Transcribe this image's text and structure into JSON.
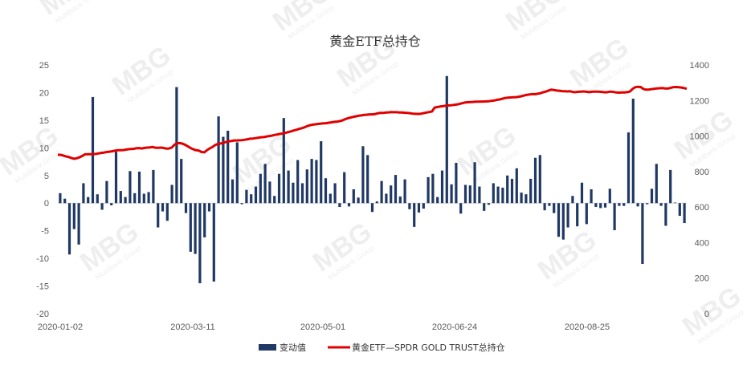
{
  "chart_data": {
    "type": "bar+line",
    "title": "黄金ETF总持仓",
    "x_tick_labels": [
      "2020-01-02",
      "2020-03-11",
      "2020-05-01",
      "2020-06-24",
      "2020-08-25"
    ],
    "left_axis": {
      "ylim": [
        -20,
        25
      ],
      "ticks": [
        25,
        20,
        15,
        10,
        5,
        0,
        -5,
        -10,
        -15,
        -20
      ]
    },
    "right_axis": {
      "ylim": [
        0,
        1400
      ],
      "ticks": [
        1400,
        1200,
        1000,
        800,
        600,
        400,
        200,
        0
      ]
    },
    "grid": false,
    "legend_position": "bottom",
    "series": [
      {
        "name": "变动值",
        "type": "bar",
        "axis": "left",
        "color": "#1f3864",
        "values": [
          1.8,
          0.8,
          -9.3,
          -4.7,
          -7.5,
          3.6,
          1.1,
          19.2,
          1.6,
          -1.2,
          4.0,
          -0.4,
          9.3,
          2.2,
          1.1,
          5.8,
          1.8,
          5.7,
          1.7,
          2.0,
          6.0,
          -4.4,
          -1.5,
          -3.2,
          3.3,
          21.0,
          8.0,
          -1.8,
          -8.8,
          -9.2,
          -14.5,
          -6.2,
          -1.5,
          -14.2,
          15.7,
          12.0,
          13.1,
          4.3,
          11.0,
          -0.2,
          2.4,
          1.6,
          3.0,
          5.3,
          7.1,
          3.9,
          1.3,
          5.3,
          15.4,
          5.9,
          3.7,
          7.8,
          3.6,
          6.1,
          8.0,
          7.8,
          11.2,
          4.5,
          1.7,
          3.6,
          -0.7,
          5.6,
          -0.6,
          2.5,
          1.0,
          10.3,
          8.7,
          -1.6,
          0.3,
          4.0,
          1.7,
          3.2,
          5.1,
          1.2,
          4.3,
          -1.1,
          -4.3,
          -1.7,
          -1.0,
          4.7,
          5.3,
          1.1,
          5.9,
          23.0,
          3.4,
          7.3,
          -1.9,
          3.3,
          3.2,
          7.4,
          3.0,
          -1.4,
          -0.3,
          3.6,
          3.0,
          2.8,
          5.0,
          4.4,
          6.3,
          1.9,
          1.6,
          4.4,
          8.2,
          8.7,
          -1.3,
          -0.5,
          -1.8,
          -6.1,
          -6.6,
          -4.4,
          1.3,
          -4.2,
          3.7,
          -3.8,
          2.5,
          -0.7,
          -0.9,
          -0.8,
          2.6,
          -4.9,
          -0.5,
          -0.5,
          12.8,
          18.9,
          -0.6,
          -11.0,
          -0.2,
          2.6,
          7.1,
          -0.5,
          -4.1,
          6.0,
          0.1,
          -2.3,
          -3.6
        ]
      },
      {
        "name": "黄金ETF—SPDR GOLD TRUST总持仓",
        "type": "line",
        "axis": "right",
        "color": "#e00000",
        "values": [
          894,
          894,
          890,
          885,
          882,
          876,
          872,
          875,
          880,
          888,
          897,
          898,
          898,
          898,
          899,
          902,
          905,
          907,
          910,
          912,
          914,
          917,
          920,
          920,
          921,
          923,
          926,
          927,
          928,
          931,
          932,
          930,
          933,
          935,
          936,
          938,
          934,
          934,
          935,
          933,
          929,
          930,
          935,
          950,
          959,
          960,
          957,
          950,
          941,
          932,
          925,
          920,
          918,
          910,
          908,
          920,
          930,
          938,
          949,
          955,
          958,
          962,
          966,
          970,
          972,
          975,
          975,
          976,
          977,
          979,
          982,
          985,
          986,
          988,
          991,
          993,
          994,
          997,
          1000,
          1002,
          1006,
          1009,
          1012,
          1014,
          1018,
          1022,
          1026,
          1031,
          1035,
          1040,
          1044,
          1049,
          1056,
          1061,
          1064,
          1066,
          1068,
          1070,
          1071,
          1072,
          1075,
          1077,
          1080,
          1081,
          1084,
          1088,
          1095,
          1100,
          1104,
          1108,
          1111,
          1114,
          1116,
          1119,
          1120,
          1122,
          1122,
          1123,
          1128,
          1130,
          1130,
          1132,
          1133,
          1135,
          1134,
          1134,
          1132,
          1132,
          1131,
          1130,
          1128,
          1126,
          1125,
          1124,
          1126,
          1129,
          1132,
          1135,
          1138,
          1160,
          1163,
          1166,
          1168,
          1170,
          1172,
          1173,
          1175,
          1177,
          1180,
          1184,
          1188,
          1190,
          1191,
          1192,
          1193,
          1193,
          1194,
          1194,
          1195,
          1196,
          1198,
          1200,
          1204,
          1206,
          1210,
          1214,
          1216,
          1217,
          1218,
          1219,
          1221,
          1224,
          1228,
          1232,
          1234,
          1236,
          1235,
          1238,
          1241,
          1246,
          1250,
          1256,
          1261,
          1259,
          1256,
          1255,
          1253,
          1252,
          1251,
          1252,
          1248,
          1247,
          1249,
          1250,
          1251,
          1249,
          1247,
          1249,
          1250,
          1250,
          1249,
          1248,
          1246,
          1248,
          1250,
          1248,
          1245,
          1244,
          1245,
          1245,
          1247,
          1250,
          1265,
          1275,
          1277,
          1276,
          1265,
          1261,
          1262,
          1264,
          1266,
          1268,
          1269,
          1270,
          1268,
          1267,
          1271,
          1275,
          1276,
          1275,
          1273,
          1270,
          1266
        ]
      }
    ]
  },
  "watermark": {
    "brand": "MBG",
    "sub": "MultiBank Group"
  },
  "colors": {
    "bar": "#1f3864",
    "line": "#e00000",
    "axis_text": "#595959",
    "axis_line": "#d9d9d9"
  }
}
